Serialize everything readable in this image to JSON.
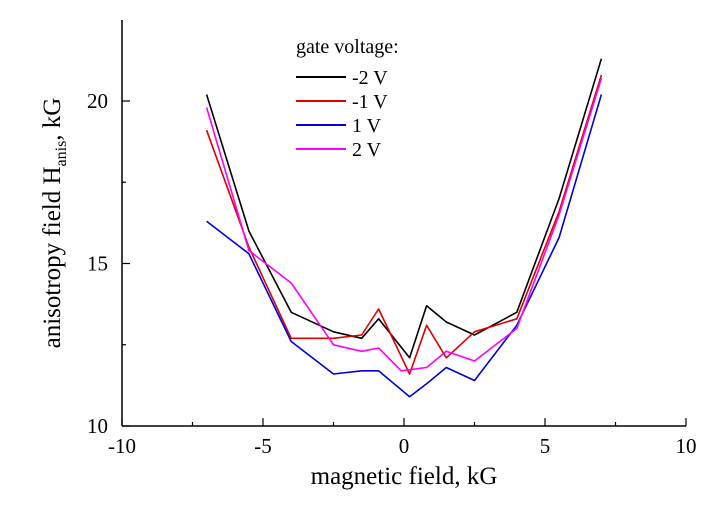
{
  "chart_data": {
    "type": "line",
    "title": "",
    "xlabel": "magnetic field, kG",
    "ylabel_main": "anisotropy field H",
    "ylabel_sub": "anis",
    "ylabel_tail": ", kG",
    "xlim": [
      -10,
      10
    ],
    "ylim": [
      10,
      22.5
    ],
    "x_ticks": [
      -10,
      -5,
      0,
      5,
      10
    ],
    "x_tick_labels": [
      "-10",
      "-5",
      "0",
      "5",
      "10"
    ],
    "y_ticks": [
      10,
      15,
      20
    ],
    "y_tick_labels": [
      "10",
      "15",
      "20"
    ],
    "grid": false,
    "legend_title": "gate voltage:",
    "legend_position": "top-center",
    "series": [
      {
        "name": "-2 V",
        "color": "#000000",
        "x": [
          -7,
          -5.5,
          -4,
          -2.5,
          -1.5,
          -0.9,
          0.2,
          0.8,
          1.5,
          2.5,
          4,
          5.5,
          7
        ],
        "y": [
          20.2,
          16.0,
          13.5,
          12.9,
          12.7,
          13.3,
          12.1,
          13.7,
          13.2,
          12.8,
          13.5,
          17.0,
          21.3
        ]
      },
      {
        "name": "-1 V",
        "color": "#e00000",
        "x": [
          -7,
          -5.5,
          -4,
          -2.5,
          -1.5,
          -0.9,
          0.2,
          0.8,
          1.5,
          2.5,
          4,
          5.5,
          7
        ],
        "y": [
          19.1,
          15.5,
          12.7,
          12.7,
          12.8,
          13.6,
          11.6,
          13.1,
          12.1,
          12.9,
          13.3,
          16.6,
          20.8
        ]
      },
      {
        "name": "1 V",
        "color": "#0000e0",
        "x": [
          -7,
          -5.5,
          -4,
          -2.5,
          -1.5,
          -0.9,
          0.2,
          0.8,
          1.5,
          2.5,
          4,
          5.5,
          7
        ],
        "y": [
          16.3,
          15.3,
          12.6,
          11.6,
          11.7,
          11.7,
          10.9,
          11.3,
          11.8,
          11.4,
          13.1,
          15.8,
          20.2
        ]
      },
      {
        "name": "2 V",
        "color": "#ff00ff",
        "x": [
          -7,
          -5.5,
          -4,
          -2.5,
          -1.5,
          -0.9,
          -0.1,
          0.8,
          1.5,
          2.5,
          4,
          5.5,
          7
        ],
        "y": [
          19.8,
          15.4,
          14.4,
          12.5,
          12.3,
          12.4,
          11.7,
          11.8,
          12.3,
          12.0,
          13.0,
          16.5,
          20.7
        ]
      }
    ]
  }
}
